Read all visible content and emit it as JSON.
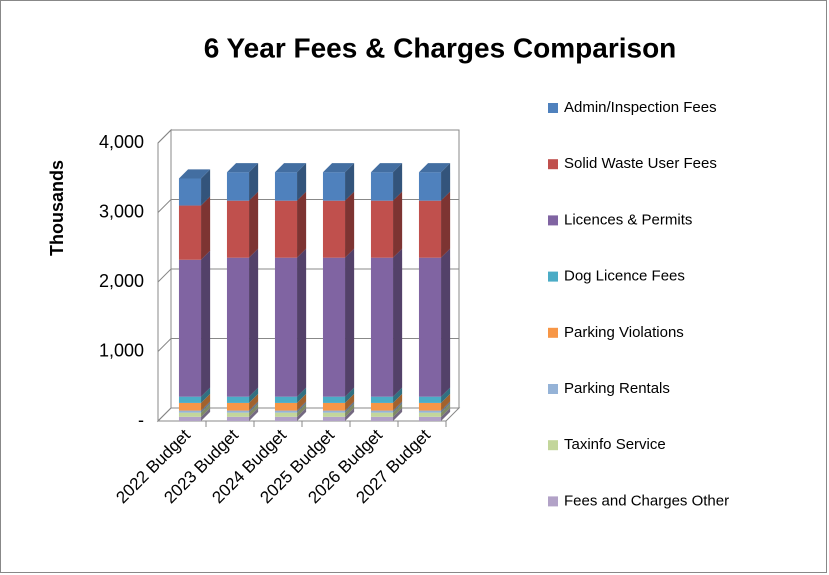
{
  "chart_data": {
    "type": "stacked_bar_3d",
    "title": "6 Year Fees & Charges Comparison",
    "y_label": "Thousands",
    "categories": [
      "2022 Budget",
      "2023 Budget",
      "2024 Budget",
      "2025 Budget",
      "2026 Budget",
      "2027 Budget"
    ],
    "series": [
      {
        "name": "Fees and Charges Other",
        "color": "#b2a2c7",
        "values": [
          60,
          60,
          60,
          60,
          60,
          60
        ]
      },
      {
        "name": "Taxinfo Service",
        "color": "#c3d69b",
        "values": [
          60,
          60,
          60,
          60,
          60,
          60
        ]
      },
      {
        "name": "Parking Rentals",
        "color": "#95b3d7",
        "values": [
          30,
          30,
          30,
          30,
          30,
          30
        ]
      },
      {
        "name": "Parking Violations",
        "color": "#f79646",
        "values": [
          110,
          110,
          110,
          110,
          110,
          110
        ]
      },
      {
        "name": "Dog Licence Fees",
        "color": "#4bacc6",
        "values": [
          90,
          90,
          90,
          90,
          90,
          90
        ]
      },
      {
        "name": "Licences & Permits",
        "color": "#8064a2",
        "values": [
          1970,
          2000,
          2000,
          2000,
          2000,
          2000
        ]
      },
      {
        "name": "Solid Waste User Fees",
        "color": "#c0504d",
        "values": [
          780,
          820,
          820,
          820,
          820,
          820
        ]
      },
      {
        "name": "Admin/Inspection Fees",
        "color": "#4f81bd",
        "values": [
          390,
          410,
          410,
          410,
          410,
          410
        ]
      }
    ],
    "ylim": [
      0,
      4000
    ],
    "yticks": [
      {
        "value": 0,
        "label": "-"
      },
      {
        "value": 1000,
        "label": "1,000"
      },
      {
        "value": 2000,
        "label": "2,000"
      },
      {
        "value": 3000,
        "label": "3,000"
      },
      {
        "value": 4000,
        "label": "4,000"
      }
    ],
    "grid": true,
    "legend": "right"
  }
}
